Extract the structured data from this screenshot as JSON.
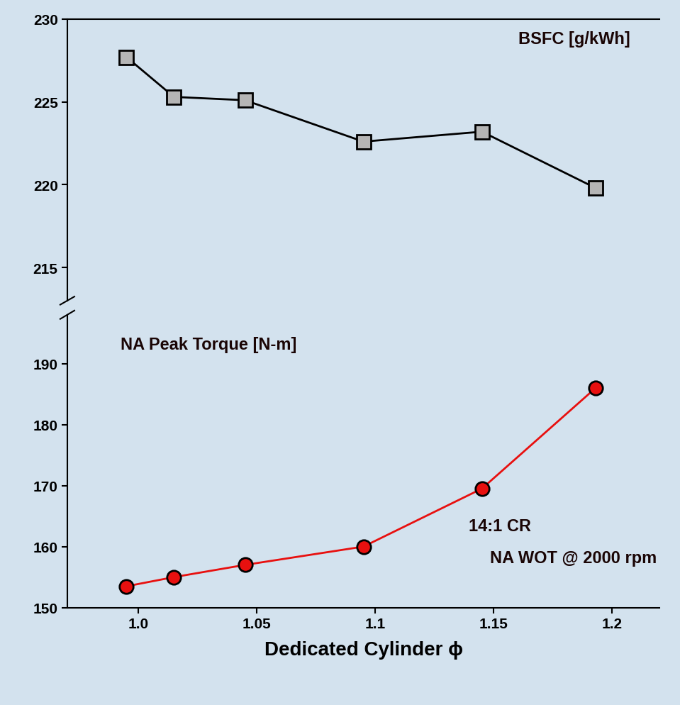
{
  "chart_data": [
    {
      "type": "line",
      "title": "BSFC [g/kWh]",
      "x": [
        0.995,
        1.015,
        1.045,
        1.095,
        1.145,
        1.193
      ],
      "values": [
        227.7,
        225.3,
        225.1,
        222.6,
        223.2,
        219.8
      ],
      "color": "#000000",
      "marker": "square",
      "xlim": [
        0.97,
        1.22
      ],
      "ylim": [
        213,
        230
      ],
      "yticks": [
        215,
        220,
        225,
        230
      ],
      "tick_labels": "y"
    },
    {
      "type": "line",
      "title": "NA Peak Torque [N-m]",
      "x": [
        0.995,
        1.015,
        1.045,
        1.095,
        1.145,
        1.193
      ],
      "values": [
        153.5,
        155,
        157,
        160,
        169.5,
        186
      ],
      "color": "#e8100f",
      "marker": "circle",
      "xlabel": "Dedicated Cylinder ϕ",
      "annotations": [
        "14:1 CR",
        "NA WOT @ 2000 rpm"
      ],
      "xlim": [
        0.97,
        1.22
      ],
      "xticks": [
        1.0,
        1.05,
        1.1,
        1.15,
        1.2
      ],
      "ylim": [
        150,
        198
      ],
      "yticks": [
        150,
        160,
        170,
        180,
        190
      ]
    }
  ]
}
